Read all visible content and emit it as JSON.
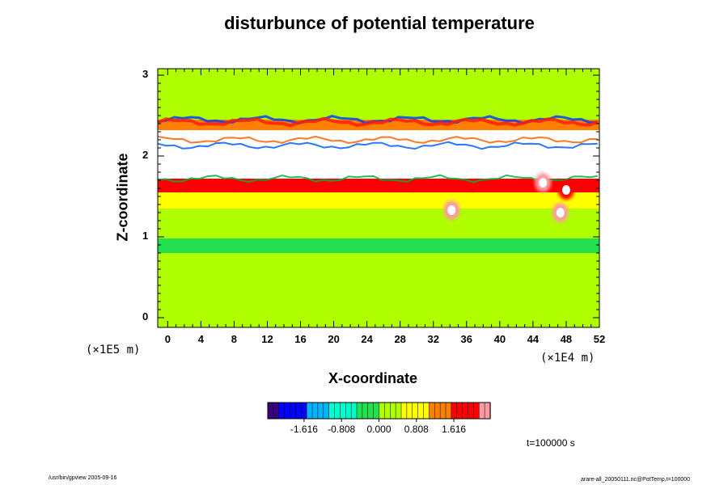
{
  "chart_data": {
    "type": "heatmap",
    "title": "disturbunce of potential temperature",
    "xlabel": "X-coordinate",
    "ylabel": "Z-coordinate",
    "x_ticks": [
      "0",
      "4",
      "8",
      "12",
      "16",
      "20",
      "24",
      "28",
      "32",
      "36",
      "40",
      "44",
      "48",
      "52"
    ],
    "y_ticks": [
      "0",
      "1",
      "2",
      "3"
    ],
    "x_tick_values": [
      0,
      4,
      8,
      12,
      16,
      20,
      24,
      28,
      32,
      36,
      40,
      44,
      48,
      52
    ],
    "y_tick_values": [
      0,
      1,
      2,
      3
    ],
    "xlim": [
      -1.2,
      52
    ],
    "ylim": [
      -0.12,
      3.08
    ],
    "x_scale_label": "(×1E4 m)",
    "y_scale_label": "(×1E5 m)",
    "colorbar": {
      "tick_labels": [
        "-1.616",
        "-0.808",
        "0.000",
        "0.808",
        "1.616"
      ],
      "tick_values": [
        -1.616,
        -0.808,
        0.0,
        0.808,
        1.616
      ],
      "range": [
        -2.4,
        2.4
      ],
      "colormap": [
        "#3b0080",
        "#0000ff",
        "#00b4ff",
        "#00ffd0",
        "#22e050",
        "#b0ff00",
        "#ffff00",
        "#ff8000",
        "#ff0000",
        "#ff9aa0"
      ]
    },
    "bands": [
      {
        "z_top": 3.08,
        "z_bottom": 2.45,
        "level": 0.0
      },
      {
        "z_top": 2.45,
        "z_bottom": 2.32,
        "level": 1.2
      },
      {
        "z_top": 2.32,
        "z_bottom": 2.15,
        "level": "undefined"
      },
      {
        "z_top": 2.15,
        "z_bottom": 1.72,
        "level": "undefined"
      },
      {
        "z_top": 1.72,
        "z_bottom": 1.55,
        "level": 1.6
      },
      {
        "z_top": 1.55,
        "z_bottom": 1.35,
        "level": 0.8
      },
      {
        "z_top": 1.35,
        "z_bottom": 0.98,
        "level": 0.1
      },
      {
        "z_top": 0.98,
        "z_bottom": 0.8,
        "level": -0.5
      },
      {
        "z_top": 0.8,
        "z_bottom": -0.12,
        "level": 0.0
      }
    ],
    "features": [
      {
        "x": 34.2,
        "z": 1.33,
        "level": 2.2
      },
      {
        "x": 47.3,
        "z": 1.3,
        "level": 2.2
      },
      {
        "x": 48.0,
        "z": 1.58,
        "level": 2.0
      },
      {
        "x": 45.2,
        "z": 1.67,
        "level": 2.2
      }
    ],
    "time_label": "t=100000 s"
  },
  "footer": {
    "left": "/usr/bin/gpview 2005-09-16",
    "right": "arare-all_20050111.nc@PotTemp,t=100000"
  },
  "colors": {
    "background": "#00ee58",
    "undefined": "#ffffff"
  }
}
